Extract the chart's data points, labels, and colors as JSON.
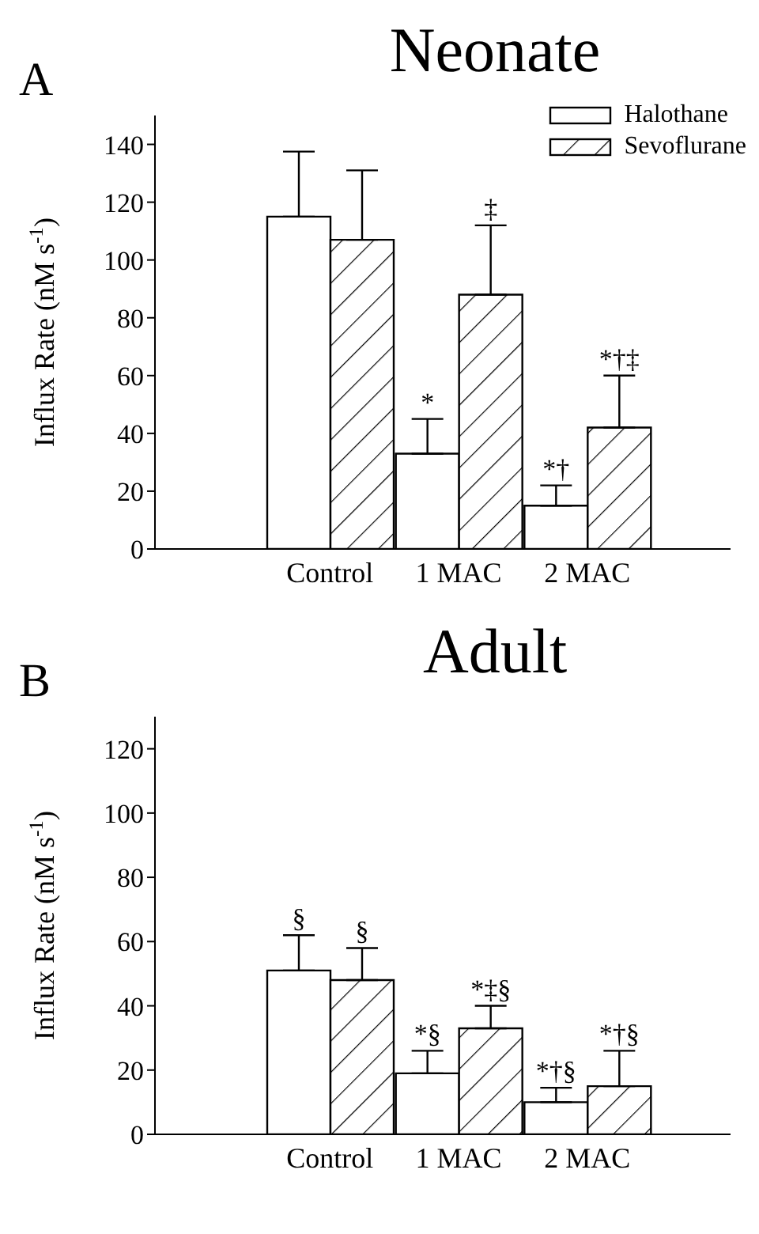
{
  "chart_data": [
    {
      "type": "bar",
      "title": "Neonate",
      "ylabel": "Influx Rate (nM s$^{-1}$)",
      "categories": [
        "Control",
        "1 MAC",
        "2 MAC"
      ],
      "series": [
        {
          "name": "Halothane",
          "color": "#ffffff",
          "values": [
            115,
            33,
            15
          ],
          "errors": [
            [
              115,
              137.5
            ],
            [
              33,
              45
            ],
            [
              15,
              22
            ]
          ],
          "value_labels": [
            null,
            "*",
            "*†"
          ]
        },
        {
          "name": "Sevoflurane",
          "color": "#000000",
          "values": [
            107,
            88,
            42
          ],
          "errors": [
            [
              107,
              131
            ],
            [
              88,
              112
            ],
            [
              42,
              60
            ]
          ],
          "value_labels": [
            null,
            "‡",
            "*†‡"
          ]
        }
      ],
      "ylim": [
        0,
        150
      ],
      "yticks": [
        0,
        20,
        40,
        60,
        80,
        100,
        120,
        140
      ],
      "grid": false,
      "legend": "top right",
      "annotations": [
        "A"
      ]
    },
    {
      "type": "bar",
      "title": "Adult",
      "ylabel": "Influx Rate (nM s$^{-1}$)",
      "categories": [
        "Control",
        "1 MAC",
        "2 MAC"
      ],
      "series": [
        {
          "color": "#ffffff",
          "values": [
            51,
            19,
            10
          ],
          "errors": [
            [
              51,
              62
            ],
            [
              19,
              26
            ],
            [
              10,
              14.5
            ]
          ],
          "value_labels": [
            "§",
            "*§",
            "*†§"
          ]
        },
        {
          "color": "#000000",
          "values": [
            48,
            33,
            15
          ],
          "errors": [
            [
              48,
              58
            ],
            [
              33,
              40
            ],
            [
              15,
              26
            ]
          ],
          "value_labels": [
            "§",
            "*‡§",
            "*†§"
          ]
        }
      ],
      "ylim": [
        0,
        130
      ],
      "yticks": [
        0,
        20,
        40,
        60,
        80,
        100,
        120
      ],
      "grid": false,
      "annotations": [
        "B"
      ]
    }
  ]
}
